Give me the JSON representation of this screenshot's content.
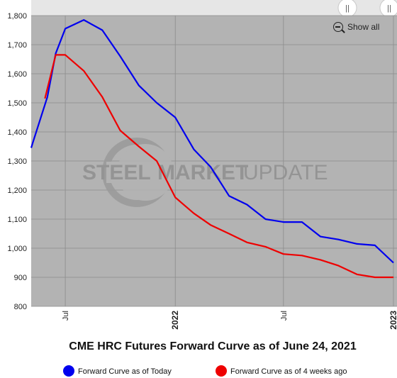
{
  "chart_data": {
    "type": "line",
    "title": "CME HRC Futures Forward Curve as of June 24, 2021",
    "ylim": [
      800,
      1800
    ],
    "yticks": [
      800,
      900,
      1000,
      1100,
      1200,
      1300,
      1400,
      1500,
      1600,
      1700,
      1800
    ],
    "ytick_labels": [
      "800",
      "900",
      "1,000",
      "1,100",
      "1,200",
      "1,300",
      "1,400",
      "1,500",
      "1,600",
      "1,700",
      "1,800"
    ],
    "xlim": [
      "2021-05-05",
      "2023-01-01"
    ],
    "xticks": [
      {
        "date": "2021-07-01",
        "label": "Jul",
        "bold": false
      },
      {
        "date": "2022-01-01",
        "label": "2022",
        "bold": true
      },
      {
        "date": "2022-07-01",
        "label": "Jul",
        "bold": false
      },
      {
        "date": "2023-01-01",
        "label": "2023",
        "bold": true
      }
    ],
    "grid": true,
    "legend_position": "bottom",
    "series": [
      {
        "name": "Forward Curve as of Today",
        "color": "#0000ee",
        "points": [
          [
            "2021-05-05",
            1345
          ],
          [
            "2021-05-08",
            1365
          ],
          [
            "2021-06-01",
            1520
          ],
          [
            "2021-06-15",
            1670
          ],
          [
            "2021-07-01",
            1755
          ],
          [
            "2021-08-01",
            1785
          ],
          [
            "2021-09-01",
            1750
          ],
          [
            "2021-10-01",
            1660
          ],
          [
            "2021-11-01",
            1560
          ],
          [
            "2021-12-01",
            1500
          ],
          [
            "2022-01-01",
            1450
          ],
          [
            "2022-02-01",
            1340
          ],
          [
            "2022-03-01",
            1280
          ],
          [
            "2022-04-01",
            1180
          ],
          [
            "2022-05-01",
            1150
          ],
          [
            "2022-06-01",
            1100
          ],
          [
            "2022-07-01",
            1090
          ],
          [
            "2022-08-01",
            1090
          ],
          [
            "2022-09-01",
            1040
          ],
          [
            "2022-10-01",
            1030
          ],
          [
            "2022-11-01",
            1015
          ],
          [
            "2022-12-01",
            1010
          ],
          [
            "2023-01-01",
            950
          ]
        ]
      },
      {
        "name": "Forward Curve as of 4 weeks ago",
        "color": "#ee0000",
        "points": [
          [
            "2021-05-28",
            1515
          ],
          [
            "2021-06-15",
            1665
          ],
          [
            "2021-07-01",
            1665
          ],
          [
            "2021-08-01",
            1610
          ],
          [
            "2021-09-01",
            1520
          ],
          [
            "2021-10-01",
            1405
          ],
          [
            "2021-11-01",
            1350
          ],
          [
            "2021-12-01",
            1300
          ],
          [
            "2022-01-01",
            1175
          ],
          [
            "2022-02-01",
            1120
          ],
          [
            "2022-03-01",
            1080
          ],
          [
            "2022-04-01",
            1050
          ],
          [
            "2022-05-01",
            1020
          ],
          [
            "2022-06-01",
            1005
          ],
          [
            "2022-07-01",
            980
          ],
          [
            "2022-08-01",
            975
          ],
          [
            "2022-09-01",
            960
          ],
          [
            "2022-10-01",
            940
          ],
          [
            "2022-11-01",
            910
          ],
          [
            "2022-12-01",
            900
          ],
          [
            "2023-01-01",
            900
          ]
        ]
      }
    ]
  },
  "watermark": {
    "word1": "STEEL",
    "word2": "MARKET",
    "word3": "UPDATE"
  },
  "controls": {
    "show_all_label": "Show all",
    "slider_handle_glyph": "||"
  },
  "colors": {
    "plot_background": "#b3b3b3",
    "grid": "#8c8c8c",
    "navigator_band": "#e6e6e6"
  }
}
